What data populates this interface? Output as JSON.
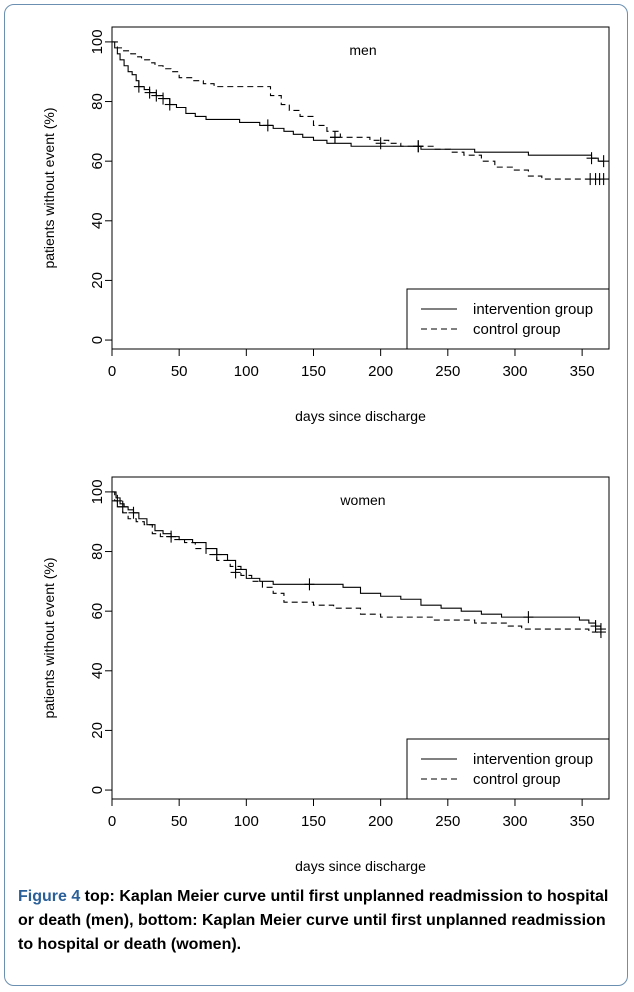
{
  "chart_data": [
    {
      "type": "line",
      "title": "men",
      "xlabel": "days since discharge",
      "ylabel": "patients without event (%)",
      "xlim": [
        0,
        370
      ],
      "ylim": [
        -3,
        105
      ],
      "xticks": [
        0,
        50,
        100,
        150,
        200,
        250,
        300,
        350
      ],
      "yticks": [
        0,
        20,
        40,
        60,
        80,
        100
      ],
      "grid": false,
      "legend": "bottom-right",
      "series": [
        {
          "name": "intervention group",
          "style": "solid",
          "x": [
            0,
            2,
            4,
            6,
            9,
            12,
            15,
            18,
            20,
            24,
            28,
            33,
            38,
            43,
            48,
            55,
            62,
            70,
            80,
            95,
            110,
            120,
            128,
            135,
            142,
            150,
            160,
            170,
            178,
            185,
            195,
            205,
            215,
            230,
            250,
            270,
            290,
            300,
            310,
            320,
            340,
            350,
            357,
            362,
            366
          ],
          "y": [
            100,
            98,
            96,
            94,
            92,
            90,
            89,
            87,
            85,
            84,
            83,
            82,
            81,
            79,
            78,
            76,
            75,
            74,
            74,
            73,
            72,
            71,
            70,
            69,
            68,
            67,
            66,
            66,
            65,
            65,
            65,
            65,
            65,
            64,
            64,
            63,
            63,
            63,
            62,
            62,
            62,
            62,
            61,
            60,
            60
          ],
          "censor_x": [
            20,
            28,
            33,
            38,
            43,
            116,
            166,
            200,
            228,
            357,
            366
          ],
          "censor_y": [
            85,
            83,
            82,
            81,
            79,
            72,
            68,
            66,
            65,
            61,
            60
          ]
        },
        {
          "name": "control group",
          "style": "dashed",
          "x": [
            0,
            4,
            8,
            14,
            18,
            22,
            28,
            32,
            38,
            44,
            50,
            60,
            68,
            76,
            84,
            90,
            100,
            112,
            118,
            126,
            132,
            140,
            150,
            160,
            170,
            180,
            192,
            200,
            206,
            215,
            228,
            240,
            252,
            262,
            275,
            285,
            298,
            310,
            320,
            345,
            366
          ],
          "y": [
            100,
            98,
            97,
            96,
            95,
            94,
            93,
            92,
            91,
            90,
            88,
            87,
            86,
            85,
            85,
            85,
            85,
            85,
            82,
            79,
            77,
            75,
            72,
            70,
            68,
            68,
            67,
            67,
            66,
            65,
            65,
            64,
            63,
            62,
            60,
            58,
            57,
            55,
            54,
            54,
            54
          ],
          "censor_x": [
            166,
            228,
            356,
            360,
            363,
            366
          ],
          "censor_y": [
            68,
            65,
            54,
            54,
            54,
            54
          ]
        }
      ]
    },
    {
      "type": "line",
      "title": "women",
      "xlabel": "days since discharge",
      "ylabel": "patients without event (%)",
      "xlim": [
        0,
        370
      ],
      "ylim": [
        -3,
        105
      ],
      "xticks": [
        0,
        50,
        100,
        150,
        200,
        250,
        300,
        350
      ],
      "yticks": [
        0,
        20,
        40,
        60,
        80,
        100
      ],
      "grid": false,
      "legend": "bottom-right",
      "series": [
        {
          "name": "intervention group",
          "style": "solid",
          "x": [
            0,
            3,
            6,
            9,
            12,
            16,
            20,
            26,
            32,
            38,
            44,
            50,
            60,
            70,
            78,
            86,
            92,
            100,
            110,
            120,
            130,
            145,
            160,
            172,
            185,
            200,
            215,
            230,
            245,
            260,
            275,
            290,
            300,
            310,
            320,
            340,
            348,
            355,
            360,
            364
          ],
          "y": [
            100,
            98,
            96,
            95,
            94,
            93,
            91,
            89,
            87,
            86,
            85,
            84,
            83,
            81,
            79,
            77,
            74,
            71,
            70,
            69,
            69,
            69,
            69,
            68,
            66,
            65,
            64,
            62,
            61,
            60,
            59,
            58,
            58,
            58,
            58,
            58,
            57,
            56,
            55,
            54
          ],
          "censor_x": [
            8,
            16,
            44,
            78,
            92,
            147,
            310,
            360,
            364
          ],
          "censor_y": [
            95,
            93,
            85,
            79,
            73,
            69,
            58,
            55,
            54
          ]
        },
        {
          "name": "control group",
          "style": "dashed",
          "x": [
            0,
            2,
            4,
            8,
            12,
            18,
            24,
            30,
            36,
            44,
            54,
            62,
            70,
            78,
            88,
            96,
            104,
            112,
            120,
            128,
            140,
            150,
            165,
            185,
            200,
            222,
            240,
            255,
            270,
            285,
            295,
            305,
            320,
            340,
            355,
            364
          ],
          "y": [
            100,
            97,
            95,
            93,
            91,
            90,
            89,
            86,
            85,
            84,
            83,
            81,
            79,
            77,
            75,
            72,
            70,
            68,
            66,
            63,
            63,
            62,
            61,
            59,
            58,
            58,
            57,
            57,
            56,
            56,
            55,
            54,
            54,
            54,
            53,
            53
          ],
          "censor_x": [
            4,
            364
          ],
          "censor_y": [
            97,
            53
          ]
        }
      ]
    }
  ],
  "caption": {
    "label": "Figure 4",
    "text": " top: Kaplan Meier curve until first unplanned readmission to hospital or death (men), bottom: Kaplan Meier curve until first unplanned readmission to hospital or death (women)."
  }
}
